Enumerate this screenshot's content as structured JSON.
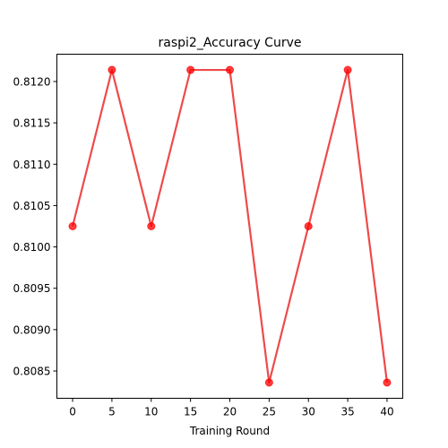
{
  "chart_data": {
    "type": "line",
    "title": "raspi2_Accuracy Curve",
    "xlabel": "Training Round",
    "ylabel": "",
    "x": [
      0,
      5,
      10,
      15,
      20,
      25,
      30,
      35,
      40
    ],
    "series": [
      {
        "values": [
          0.81025,
          0.81214,
          0.81025,
          0.81214,
          0.81214,
          0.80836,
          0.81025,
          0.81214,
          0.80836
        ],
        "color": "#ee4a4a",
        "marker_color": "#ff0000"
      }
    ],
    "xlim": [
      -2,
      42
    ],
    "ylim": [
      0.80817,
      0.81233
    ],
    "xticks": [
      "0",
      "5",
      "10",
      "15",
      "20",
      "25",
      "30",
      "35",
      "40"
    ],
    "yticks": [
      "0.8085",
      "0.8090",
      "0.8095",
      "0.8100",
      "0.8105",
      "0.8110",
      "0.8115",
      "0.8120"
    ],
    "grid": false,
    "legend": "none"
  }
}
